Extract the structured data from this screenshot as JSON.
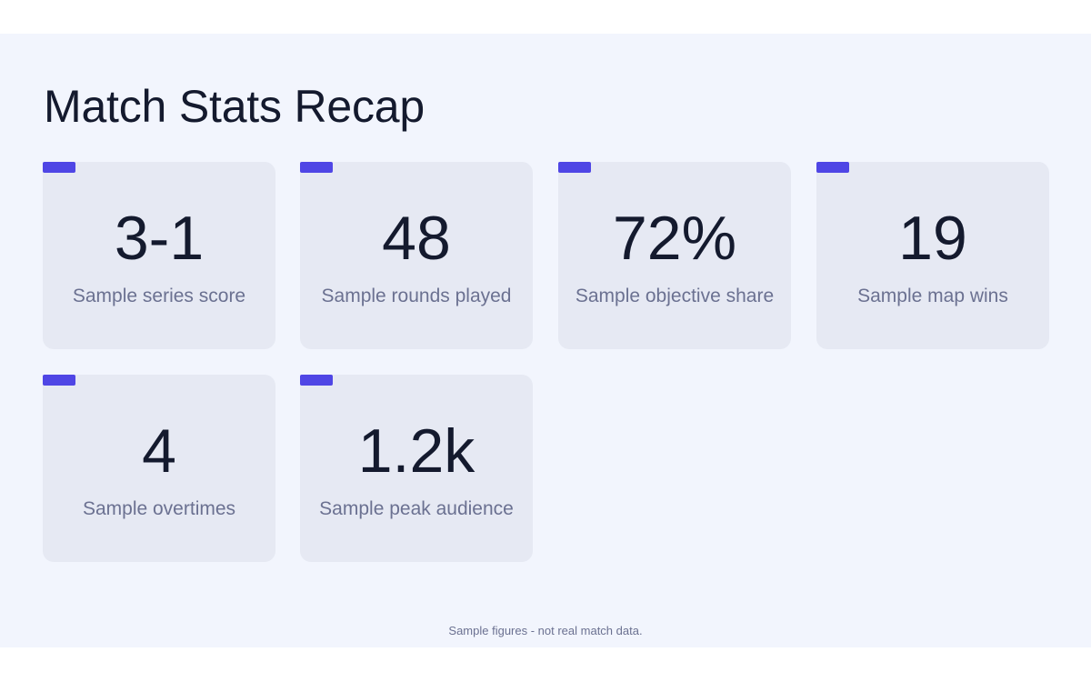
{
  "title": "Match Stats Recap",
  "stats": [
    {
      "value": "3-1",
      "label": "Sample series score"
    },
    {
      "value": "48",
      "label": "Sample rounds played"
    },
    {
      "value": "72%",
      "label": "Sample objective share"
    },
    {
      "value": "19",
      "label": "Sample map wins"
    },
    {
      "value": "4",
      "label": "Sample overtimes"
    },
    {
      "value": "1.2k",
      "label": "Sample peak audience"
    }
  ],
  "footnote": "Sample figures - not real match data.",
  "colors": {
    "accent": "#4f46e5",
    "background": "#f2f5fd",
    "card": "#e6e9f3",
    "value_text": "#141a2e",
    "label_text": "#6b7191"
  }
}
